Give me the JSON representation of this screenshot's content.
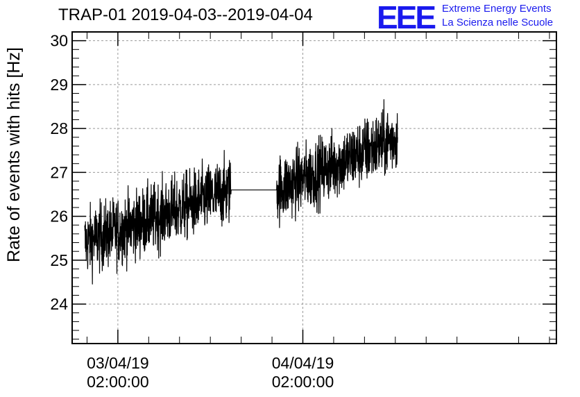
{
  "title": "TRAP-01 2019-04-03--2019-04-04",
  "logo": {
    "mark": "EEE",
    "line1": "Extreme Energy Events",
    "line2": "La Scienza nelle Scuole",
    "color": "#1a1aee"
  },
  "chart_data": {
    "type": "line",
    "title": "TRAP-01 2019-04-03--2019-04-04",
    "ylabel": "Rate of events with hits [Hz]",
    "xlabel": "",
    "ylim": [
      23.1,
      30.2
    ],
    "yticks": [
      24,
      25,
      26,
      27,
      28,
      29,
      30
    ],
    "xlim_hours": [
      -5.93,
      56.9
    ],
    "xticks": [
      {
        "hour": 0,
        "date": "03/04/19",
        "time": "02:00:00"
      },
      {
        "hour": 24,
        "date": "04/04/19",
        "time": "02:00:00"
      }
    ],
    "grid": true,
    "series": [
      {
        "name": "rate",
        "color": "#000000",
        "segments": [
          {
            "start_hour": -4.3,
            "end_hour": 14.7,
            "start_rate": 25.4,
            "end_rate": 26.6,
            "noise": 0.55
          },
          {
            "start_hour": 20.6,
            "end_hour": 36.3,
            "start_rate": 26.6,
            "end_rate": 27.8,
            "noise": 0.55
          }
        ]
      }
    ]
  }
}
